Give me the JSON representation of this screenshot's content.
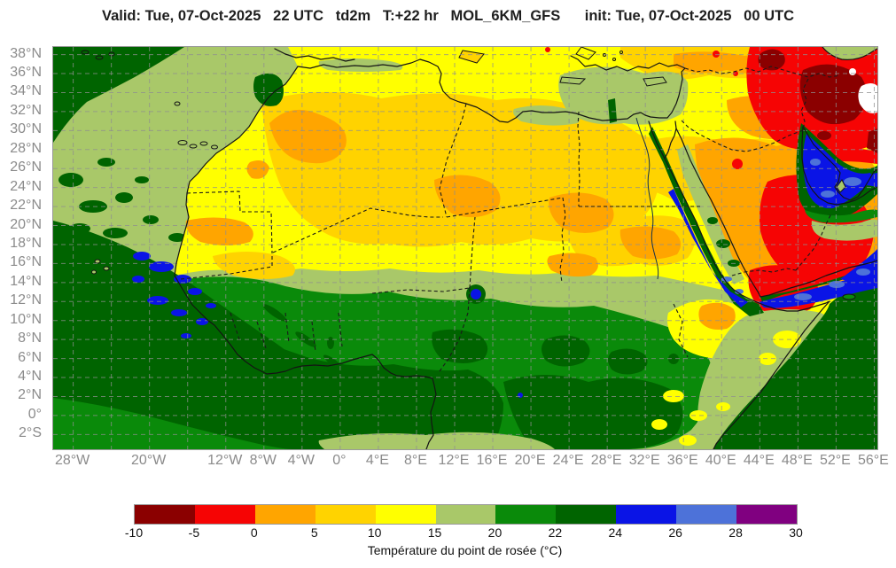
{
  "header": {
    "title": "Valid: Tue, 07-Oct-2025   22 UTC   td2m   T:+22 hr   MOL_6KM_GFS      init: Tue, 07-Oct-2025   00 UTC"
  },
  "axes": {
    "lat_ticks": [
      {
        "label": "38°N",
        "deg": 38
      },
      {
        "label": "36°N",
        "deg": 36
      },
      {
        "label": "34°N",
        "deg": 34
      },
      {
        "label": "32°N",
        "deg": 32
      },
      {
        "label": "30°N",
        "deg": 30
      },
      {
        "label": "28°N",
        "deg": 28
      },
      {
        "label": "26°N",
        "deg": 26
      },
      {
        "label": "24°N",
        "deg": 24
      },
      {
        "label": "22°N",
        "deg": 22
      },
      {
        "label": "20°N",
        "deg": 20
      },
      {
        "label": "18°N",
        "deg": 18
      },
      {
        "label": "16°N",
        "deg": 16
      },
      {
        "label": "14°N",
        "deg": 14
      },
      {
        "label": "12°N",
        "deg": 12
      },
      {
        "label": "10°N",
        "deg": 10
      },
      {
        "label": "8°N",
        "deg": 8
      },
      {
        "label": "6°N",
        "deg": 6
      },
      {
        "label": "4°N",
        "deg": 4
      },
      {
        "label": "2°N",
        "deg": 2
      },
      {
        "label": "0°",
        "deg": 0
      },
      {
        "label": "2°S",
        "deg": -2
      }
    ],
    "lon_ticks": [
      {
        "label": "28°W",
        "deg": -28
      },
      {
        "label": "20°W",
        "deg": -20
      },
      {
        "label": "12°W",
        "deg": -12
      },
      {
        "label": "8°W",
        "deg": -8
      },
      {
        "label": "4°W",
        "deg": -4
      },
      {
        "label": "0°",
        "deg": 0
      },
      {
        "label": "4°E",
        "deg": 4
      },
      {
        "label": "8°E",
        "deg": 8
      },
      {
        "label": "12°E",
        "deg": 12
      },
      {
        "label": "16°E",
        "deg": 16
      },
      {
        "label": "20°E",
        "deg": 20
      },
      {
        "label": "24°E",
        "deg": 24
      },
      {
        "label": "28°E",
        "deg": 28
      },
      {
        "label": "32°E",
        "deg": 32
      },
      {
        "label": "36°E",
        "deg": 36
      },
      {
        "label": "40°E",
        "deg": 40
      },
      {
        "label": "44°E",
        "deg": 44
      },
      {
        "label": "48°E",
        "deg": 48
      },
      {
        "label": "52°E",
        "deg": 52
      },
      {
        "label": "56°E",
        "deg": 56
      }
    ]
  },
  "legend": {
    "caption": "Température du point de rosée (°C)",
    "ticks": [
      "-10",
      "-5",
      "0",
      "5",
      "10",
      "15",
      "20",
      "22",
      "24",
      "26",
      "28",
      "30"
    ],
    "colors": [
      "#8B0000",
      "#F60404",
      "#FFA500",
      "#FFD300",
      "#FFFF00",
      "#A9C869",
      "#0A8A0A",
      "#006400",
      "#0A14E6",
      "#4D72D9",
      "#800080"
    ]
  },
  "chart_data": {
    "type": "heatmap",
    "title": "Valid: Tue, 07-Oct-2025 22 UTC td2m T:+22 hr MOL_6KM_GFS init: Tue, 07-Oct-2025 00 UTC",
    "variable": "td2m",
    "model": "MOL_6KM_GFS",
    "valid_time": "Tue, 07-Oct-2025 22 UTC",
    "init_time": "Tue, 07-Oct-2025 00 UTC",
    "forecast_hour": "+22 hr",
    "colorbar_label": "Température du point de rosée (°C)",
    "lon_range_labels": [
      "28°W",
      "56°E"
    ],
    "lat_range_labels": [
      "2°S",
      "38°N"
    ],
    "grid": "dashed graticule, 4° lon × 2° lat",
    "bins": [
      {
        "from": -10,
        "to": -5,
        "color": "#8B0000"
      },
      {
        "from": -5,
        "to": 0,
        "color": "#F60404"
      },
      {
        "from": 0,
        "to": 5,
        "color": "#FFA500"
      },
      {
        "from": 5,
        "to": 10,
        "color": "#FFD300"
      },
      {
        "from": 10,
        "to": 15,
        "color": "#FFFF00"
      },
      {
        "from": 15,
        "to": 20,
        "color": "#A9C869"
      },
      {
        "from": 20,
        "to": 22,
        "color": "#0A8A0A"
      },
      {
        "from": 22,
        "to": 24,
        "color": "#006400"
      },
      {
        "from": 24,
        "to": 26,
        "color": "#0A14E6"
      },
      {
        "from": 26,
        "to": 28,
        "color": "#4D72D9"
      },
      {
        "from": 28,
        "to": 30,
        "color": "#800080"
      }
    ],
    "notable_features": [
      "Sahara and Arabian interior dry (orange/red, dewpoint -5 to 5°C)",
      "Iran / NE corner very dry (dark red, -10 to -5°C)",
      "Red Sea, Persian Gulf, Gulf of Aden moist (blue, 24-28°C)",
      "Gulf of Guinea and equatorial Africa humid (dark green, 22-24°C)",
      "Moist blue patches off Senegal coast and Lake Chad"
    ]
  }
}
